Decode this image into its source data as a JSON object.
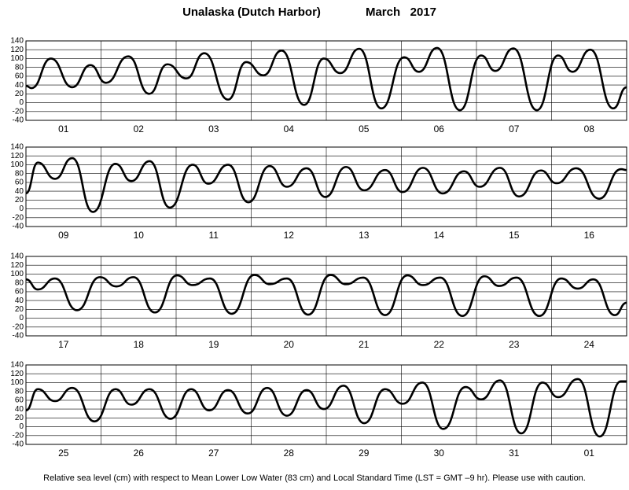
{
  "header": {
    "title": "Unalaska (Dutch Harbor)",
    "date": "March   2017"
  },
  "footer": {
    "note": "Relative sea level (cm) with respect to Mean Lower Low Water (83 cm) and Local Standard Time (LST = GMT –9 hr). Please use with caution."
  },
  "chart_data": [
    {
      "type": "line",
      "color": "#000000",
      "grid": true,
      "days": [
        "01",
        "02",
        "03",
        "04",
        "05",
        "06",
        "07",
        "08"
      ],
      "x": [
        0,
        1.8,
        8.0,
        14.8,
        20.6,
        25.6,
        32.7,
        39.4,
        45.2,
        51.3,
        57.0,
        64.6,
        70.4,
        75.9,
        81.7,
        88.9,
        95.2,
        100.5,
        106.5,
        113.6,
        120.9,
        125.6,
        131.4,
        138.7,
        145.5,
        150.0,
        155.8,
        163.3,
        170.1,
        174.7,
        180.4,
        187.7,
        192
      ],
      "values": [
        38,
        33,
        100,
        35,
        85,
        45,
        105,
        20,
        87,
        55,
        112,
        7,
        92,
        62,
        118,
        -5,
        100,
        67,
        122,
        -13,
        103,
        70,
        124,
        -17,
        107,
        72,
        123,
        -17,
        107,
        70,
        120,
        -13,
        35
      ],
      "xlim": [
        0,
        192
      ],
      "xticks": [
        0,
        24,
        48,
        72,
        96,
        120,
        144,
        168,
        192
      ],
      "ylim": [
        -40,
        140
      ],
      "yticks": [
        -40,
        -20,
        0,
        20,
        40,
        60,
        80,
        100,
        120,
        140
      ]
    },
    {
      "type": "line",
      "color": "#000000",
      "grid": true,
      "days": [
        "09",
        "10",
        "11",
        "12",
        "13",
        "14",
        "15",
        "16"
      ],
      "x": [
        0,
        3.8,
        9.3,
        14.8,
        21.4,
        28.6,
        33.7,
        39.5,
        46.0,
        53.3,
        58.3,
        64.6,
        71.1,
        77.9,
        83.4,
        89.7,
        95.7,
        102.3,
        108.1,
        114.8,
        120.4,
        126.9,
        133.2,
        140.0,
        145.0,
        151.5,
        157.6,
        164.6,
        169.6,
        175.9,
        183.2,
        190.2,
        192
      ],
      "values": [
        35,
        105,
        68,
        115,
        -7,
        102,
        63,
        108,
        3,
        100,
        57,
        100,
        15,
        97,
        50,
        92,
        27,
        95,
        42,
        88,
        38,
        93,
        35,
        85,
        50,
        93,
        28,
        87,
        58,
        92,
        23,
        90,
        88
      ],
      "xlim": [
        0,
        192
      ],
      "xticks": [
        0,
        24,
        48,
        72,
        96,
        120,
        144,
        168,
        192
      ],
      "ylim": [
        -40,
        140
      ],
      "yticks": [
        -40,
        -20,
        0,
        20,
        40,
        60,
        80,
        100,
        120,
        140
      ]
    },
    {
      "type": "line",
      "color": "#000000",
      "grid": true,
      "days": [
        "17",
        "18",
        "19",
        "20",
        "21",
        "22",
        "23",
        "24"
      ],
      "x": [
        0,
        3.8,
        9.3,
        16.3,
        23.6,
        28.9,
        34.4,
        41.2,
        48.3,
        53.3,
        58.8,
        65.8,
        73.0,
        78.0,
        83.4,
        90.2,
        97.3,
        102.3,
        107.8,
        114.8,
        121.9,
        126.9,
        132.4,
        139.5,
        146.5,
        151.3,
        156.8,
        164.1,
        171.1,
        176.4,
        181.4,
        188.2,
        192
      ],
      "values": [
        88,
        65,
        90,
        18,
        93,
        72,
        93,
        13,
        97,
        75,
        90,
        10,
        98,
        77,
        90,
        8,
        98,
        77,
        92,
        7,
        97,
        75,
        92,
        5,
        95,
        73,
        92,
        5,
        90,
        67,
        88,
        7,
        35
      ],
      "xlim": [
        0,
        192
      ],
      "xticks": [
        0,
        24,
        48,
        72,
        96,
        120,
        144,
        168,
        192
      ],
      "ylim": [
        -40,
        140
      ],
      "yticks": [
        -40,
        -20,
        0,
        20,
        40,
        60,
        80,
        100,
        120,
        140
      ]
    },
    {
      "type": "line",
      "color": "#000000",
      "grid": true,
      "days": [
        "25",
        "26",
        "27",
        "28",
        "29",
        "30",
        "31",
        "01"
      ],
      "x": [
        0,
        3.8,
        9.3,
        14.8,
        21.9,
        28.6,
        33.7,
        39.5,
        46.2,
        52.8,
        58.6,
        64.6,
        70.9,
        77.1,
        83.4,
        89.7,
        95.2,
        101.5,
        108.1,
        114.8,
        120.4,
        126.7,
        133.4,
        140.5,
        145.5,
        151.5,
        158.3,
        165.1,
        170.1,
        176.4,
        183.4,
        190.2,
        192
      ],
      "values": [
        37,
        85,
        58,
        88,
        12,
        85,
        50,
        85,
        18,
        85,
        37,
        83,
        30,
        88,
        25,
        83,
        40,
        93,
        8,
        85,
        52,
        100,
        -5,
        90,
        62,
        105,
        -15,
        100,
        67,
        108,
        -22,
        103,
        103
      ],
      "xlim": [
        0,
        192
      ],
      "xticks": [
        0,
        24,
        48,
        72,
        96,
        120,
        144,
        168,
        192
      ],
      "ylim": [
        -40,
        140
      ],
      "yticks": [
        -40,
        -20,
        0,
        20,
        40,
        60,
        80,
        100,
        120,
        140
      ]
    }
  ]
}
